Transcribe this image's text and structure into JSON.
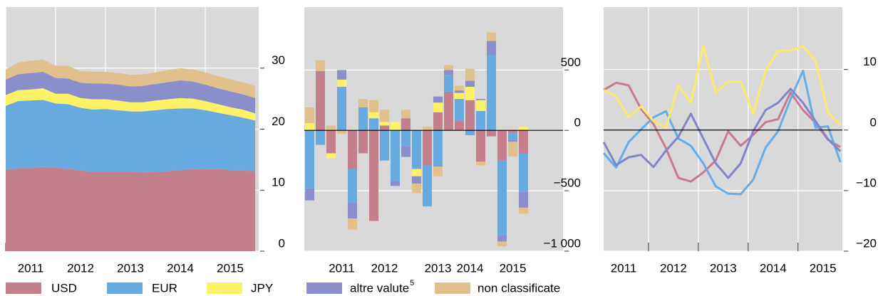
{
  "chart_data": [
    {
      "type": "area",
      "x": [
        2011,
        2011.25,
        2011.5,
        2011.75,
        2012,
        2012.25,
        2012.5,
        2012.75,
        2013,
        2013.25,
        2013.5,
        2013.75,
        2014,
        2014.25,
        2014.5,
        2014.75,
        2015,
        2015.25,
        2015.5,
        2015.75,
        2016
      ],
      "xlim": [
        2011,
        2016.07
      ],
      "xticks": [
        {
          "value": 2011,
          "label": "2011"
        },
        {
          "value": 2012,
          "label": "2012"
        },
        {
          "value": 2013,
          "label": "2013"
        },
        {
          "value": 2014,
          "label": "2014"
        },
        {
          "value": 2015,
          "label": "2015"
        }
      ],
      "ylim": [
        0,
        40
      ],
      "yticks": [
        0,
        10,
        20,
        30
      ],
      "grid": true,
      "series": [
        {
          "name": "USD",
          "color": "#c47f8c",
          "values": [
            13.3,
            13.6,
            13.6,
            13.8,
            13.7,
            13.5,
            13.2,
            13.0,
            13.0,
            13.0,
            13.0,
            12.9,
            13.0,
            13.1,
            13.3,
            13.4,
            13.5,
            13.5,
            13.3,
            13.2,
            13.1
          ]
        },
        {
          "name": "EUR",
          "color": "#66aae0",
          "values": [
            10.5,
            11.0,
            11.1,
            11.0,
            10.5,
            10.6,
            10.3,
            10.2,
            10.3,
            10.1,
            9.9,
            10.0,
            10.1,
            10.2,
            10.1,
            10.0,
            9.6,
            9.2,
            9.0,
            8.7,
            8.3
          ]
        },
        {
          "name": "JPY",
          "color": "#fdf168",
          "values": [
            1.8,
            1.8,
            1.8,
            1.9,
            1.6,
            1.7,
            1.6,
            1.7,
            1.6,
            1.6,
            1.5,
            1.5,
            1.6,
            1.6,
            1.7,
            1.6,
            1.5,
            1.4,
            1.3,
            1.3,
            1.2
          ]
        },
        {
          "name": "altre valute",
          "note": "5",
          "color": "#8a8fcb",
          "values": [
            2.5,
            2.6,
            2.7,
            2.7,
            2.6,
            2.5,
            2.5,
            2.6,
            2.6,
            2.6,
            2.6,
            2.7,
            2.7,
            2.8,
            2.9,
            2.8,
            2.7,
            2.6,
            2.6,
            2.5,
            2.5
          ]
        },
        {
          "name": "non classificate",
          "color": "#e2c08e",
          "values": [
            1.7,
            1.9,
            2.0,
            2.0,
            2.0,
            2.1,
            1.9,
            1.9,
            1.9,
            1.9,
            1.9,
            1.9,
            1.9,
            2.0,
            2.0,
            2.0,
            2.0,
            2.0,
            2.0,
            2.0,
            2.0
          ]
        }
      ]
    },
    {
      "type": "bar",
      "categories": [
        null,
        null,
        null,
        "2011",
        null,
        null,
        null,
        "2012",
        null,
        null,
        null,
        null,
        "2013",
        null,
        null,
        "2014",
        null,
        null,
        null,
        "2015",
        null
      ],
      "ylim": [
        -1000,
        1020
      ],
      "yticks": [
        {
          "value": -1000,
          "label": "−1 000"
        },
        {
          "value": -500,
          "label": "−500"
        },
        0,
        500
      ],
      "grid": true,
      "zero_line": true,
      "series": [
        {
          "color": "#c47f8c",
          "values": [
            0,
            490,
            -190,
            0,
            -320,
            -190,
            -750,
            40,
            0,
            100,
            0,
            -290,
            150,
            320,
            80,
            250,
            -260,
            -50,
            -250,
            -20,
            -190
          ]
        },
        {
          "color": "#66aae0",
          "values": [
            -480,
            -120,
            0,
            360,
            -280,
            190,
            100,
            -250,
            -420,
            -130,
            -320,
            -340,
            -300,
            140,
            180,
            -40,
            160,
            620,
            -620,
            -60,
            -320
          ]
        },
        {
          "color": "#fdf168",
          "values": [
            60,
            0,
            -40,
            60,
            0,
            0,
            50,
            30,
            70,
            0,
            -60,
            0,
            80,
            0,
            50,
            110,
            90,
            0,
            0,
            0,
            30
          ]
        },
        {
          "color": "#8a8fcb",
          "values": [
            -100,
            0,
            0,
            80,
            -130,
            0,
            0,
            0,
            -40,
            -90,
            -60,
            0,
            50,
            40,
            20,
            50,
            10,
            120,
            -50,
            -15,
            -130
          ]
        },
        {
          "color": "#e2c08e",
          "values": [
            130,
            90,
            40,
            -30,
            -90,
            70,
            100,
            100,
            0,
            70,
            -80,
            30,
            -80,
            40,
            40,
            100,
            -30,
            70,
            -40,
            -120,
            -50
          ]
        }
      ]
    },
    {
      "type": "line",
      "x": [
        2011.1,
        2011.35,
        2011.6,
        2011.85,
        2012.1,
        2012.35,
        2012.6,
        2012.85,
        2013.1,
        2013.35,
        2013.6,
        2013.85,
        2014.1,
        2014.35,
        2014.6,
        2014.85,
        2015.1,
        2015.35,
        2015.6,
        2015.85
      ],
      "xlim": [
        2011.1,
        2015.89
      ],
      "xticks": [
        {
          "value": 2011,
          "label": "2011"
        },
        {
          "value": 2012,
          "label": "2012"
        },
        {
          "value": 2013,
          "label": "2013"
        },
        {
          "value": 2014,
          "label": "2014"
        },
        {
          "value": 2015,
          "label": "2015"
        }
      ],
      "ylim": [
        -20,
        20.3
      ],
      "yticks": [
        {
          "value": -20,
          "label": "−20"
        },
        {
          "value": -10,
          "label": "−10"
        },
        0,
        10
      ],
      "grid": true,
      "zero_line": true,
      "series": [
        {
          "color": "#c97a8e",
          "values": [
            6.6,
            7.8,
            7.4,
            3.5,
            1.0,
            -3.0,
            -7.9,
            -8.5,
            -7.0,
            -5.0,
            -0.2,
            -2.6,
            -0.8,
            1.3,
            1.8,
            6.2,
            3.3,
            1.2,
            -1.6,
            -2.8
          ]
        },
        {
          "color": "#63aee8",
          "values": [
            -3.8,
            -6.2,
            -2.0,
            0.1,
            2.1,
            3.1,
            -1.4,
            -2.6,
            -5.5,
            -9.3,
            -10.5,
            -10.6,
            -8.2,
            -2.9,
            -0.2,
            5.1,
            9.8,
            0.4,
            0.6,
            -5.3
          ]
        },
        {
          "color": "#fbea69",
          "values": [
            6.6,
            5.6,
            2.1,
            3.9,
            1.5,
            0.4,
            7.4,
            4.5,
            13.9,
            6.2,
            8.0,
            8.0,
            2.7,
            9.8,
            13.1,
            13.1,
            13.8,
            11.5,
            2.9,
            0.9
          ]
        },
        {
          "color": "#8086c7",
          "values": [
            -2.0,
            -5.8,
            -4.5,
            -4.1,
            -6.1,
            -3.4,
            -1.1,
            2.7,
            -1.4,
            -5.5,
            -7.9,
            -5.5,
            -0.2,
            3.3,
            4.5,
            6.8,
            4.5,
            1.5,
            -1.5,
            -3.5
          ]
        }
      ]
    }
  ]
}
